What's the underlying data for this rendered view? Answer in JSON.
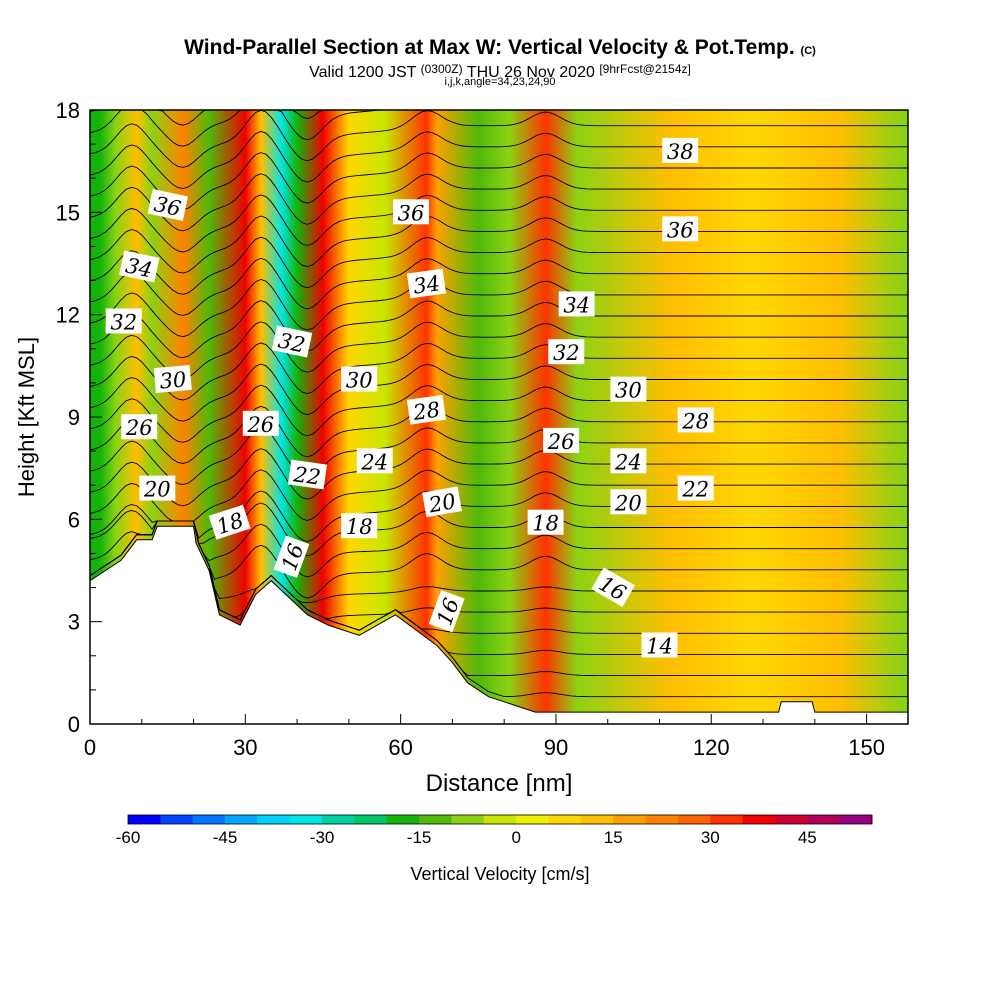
{
  "title": {
    "line1": "Wind-Parallel Section at Max W: Vertical Velocity & Pot.Temp.",
    "copyright": "(C)",
    "line2_pre": "Valid 1200 JST",
    "line2_utc": "(0300Z)",
    "line2_date": "THU 26 Nov 2020",
    "line2_fcst": "[9hrFcst@2154z]",
    "line3": "i,j,k,angle=34,23,24,90"
  },
  "chart_data": {
    "type": "heatmap",
    "xlabel": "Distance [nm]",
    "ylabel": "Height [Kft MSL]",
    "xlim": [
      0,
      158
    ],
    "ylim": [
      0,
      18
    ],
    "x_ticks": [
      0,
      30,
      60,
      90,
      120,
      150
    ],
    "y_ticks": [
      0,
      3,
      6,
      9,
      12,
      15,
      18
    ],
    "colorbar": {
      "label": "Vertical Velocity [cm/s]",
      "min": -60,
      "max": 55,
      "step": 5,
      "ticks": [
        -60,
        -45,
        -30,
        -15,
        0,
        15,
        30,
        45
      ],
      "colors": [
        "#0000ff",
        "#0044ff",
        "#0077ff",
        "#00a6ff",
        "#00d2ff",
        "#00e6e6",
        "#00d2a0",
        "#00c864",
        "#14b40a",
        "#50b90a",
        "#8cd214",
        "#c8e600",
        "#f0f000",
        "#ffd700",
        "#ffbe00",
        "#ffa000",
        "#ff8200",
        "#ff6400",
        "#ff3200",
        "#f00000",
        "#d20032",
        "#b4005a",
        "#960082"
      ]
    },
    "velocity_bands": [
      {
        "x": 2,
        "value": -20
      },
      {
        "x": 5,
        "value": -10
      },
      {
        "x": 9,
        "value": 10
      },
      {
        "x": 12,
        "value": -10
      },
      {
        "x": 18,
        "value": 20
      },
      {
        "x": 23,
        "value": -15
      },
      {
        "x": 30,
        "value": 35
      },
      {
        "x": 33,
        "value": 10
      },
      {
        "x": 37,
        "value": -35
      },
      {
        "x": 40,
        "value": -20
      },
      {
        "x": 45,
        "value": 35
      },
      {
        "x": 50,
        "value": 5
      },
      {
        "x": 57,
        "value": -5
      },
      {
        "x": 65,
        "value": 30
      },
      {
        "x": 67,
        "value": 15
      },
      {
        "x": 75,
        "value": -12
      },
      {
        "x": 81,
        "value": -8
      },
      {
        "x": 88,
        "value": 30
      },
      {
        "x": 94,
        "value": -10
      },
      {
        "x": 112,
        "value": 12
      },
      {
        "x": 128,
        "value": 7
      },
      {
        "x": 145,
        "value": 10
      },
      {
        "x": 157,
        "value": -8
      }
    ],
    "terrain_kft": [
      {
        "x": 0,
        "y": 4.2
      },
      {
        "x": 3,
        "y": 4.5
      },
      {
        "x": 6,
        "y": 4.8
      },
      {
        "x": 9,
        "y": 5.4
      },
      {
        "x": 12,
        "y": 5.4
      },
      {
        "x": 13,
        "y": 5.8
      },
      {
        "x": 20,
        "y": 5.8
      },
      {
        "x": 20.5,
        "y": 5.3
      },
      {
        "x": 23,
        "y": 4.5
      },
      {
        "x": 25,
        "y": 3.2
      },
      {
        "x": 29,
        "y": 2.9
      },
      {
        "x": 32,
        "y": 3.8
      },
      {
        "x": 35,
        "y": 4.2
      },
      {
        "x": 42,
        "y": 3.2
      },
      {
        "x": 46,
        "y": 2.9
      },
      {
        "x": 52,
        "y": 2.6
      },
      {
        "x": 59,
        "y": 3.2
      },
      {
        "x": 67,
        "y": 2.3
      },
      {
        "x": 70,
        "y": 1.8
      },
      {
        "x": 73,
        "y": 1.2
      },
      {
        "x": 77,
        "y": 0.8
      },
      {
        "x": 81,
        "y": 0.6
      },
      {
        "x": 86,
        "y": 0.35
      },
      {
        "x": 91,
        "y": 0.35
      },
      {
        "x": 133,
        "y": 0.35
      },
      {
        "x": 133.5,
        "y": 0.65
      },
      {
        "x": 139.5,
        "y": 0.65
      },
      {
        "x": 140,
        "y": 0.35
      },
      {
        "x": 158,
        "y": 0.35
      }
    ],
    "theta_labels": [
      {
        "text": "38",
        "x": 114,
        "y": 16.8,
        "angle": 0
      },
      {
        "text": "36",
        "x": 15,
        "y": 15.2,
        "angle": 12
      },
      {
        "text": "36",
        "x": 62,
        "y": 15.0,
        "angle": 0
      },
      {
        "text": "36",
        "x": 114,
        "y": 14.5,
        "angle": 0
      },
      {
        "text": "34",
        "x": 9.5,
        "y": 13.4,
        "angle": 12
      },
      {
        "text": "34",
        "x": 65,
        "y": 12.9,
        "angle": -8
      },
      {
        "text": "34",
        "x": 94,
        "y": 12.3,
        "angle": 0
      },
      {
        "text": "32",
        "x": 6.5,
        "y": 11.8,
        "angle": 0
      },
      {
        "text": "32",
        "x": 39,
        "y": 11.2,
        "angle": 12
      },
      {
        "text": "32",
        "x": 92,
        "y": 10.9,
        "angle": 0
      },
      {
        "text": "30",
        "x": 16,
        "y": 10.1,
        "angle": -5
      },
      {
        "text": "30",
        "x": 52,
        "y": 10.1,
        "angle": 0
      },
      {
        "text": "30",
        "x": 104,
        "y": 9.8,
        "angle": 0
      },
      {
        "text": "28",
        "x": 65,
        "y": 9.2,
        "angle": -8
      },
      {
        "text": "28",
        "x": 117,
        "y": 8.9,
        "angle": 0
      },
      {
        "text": "26",
        "x": 9.5,
        "y": 8.7,
        "angle": 0
      },
      {
        "text": "26",
        "x": 33,
        "y": 8.8,
        "angle": 0
      },
      {
        "text": "26",
        "x": 91,
        "y": 8.3,
        "angle": 0
      },
      {
        "text": "24",
        "x": 55,
        "y": 7.7,
        "angle": 0
      },
      {
        "text": "24",
        "x": 104,
        "y": 7.7,
        "angle": 0
      },
      {
        "text": "22",
        "x": 42,
        "y": 7.3,
        "angle": 8
      },
      {
        "text": "22",
        "x": 117,
        "y": 6.9,
        "angle": 0
      },
      {
        "text": "20",
        "x": 13,
        "y": 6.9,
        "angle": 0
      },
      {
        "text": "20",
        "x": 68,
        "y": 6.5,
        "angle": -10
      },
      {
        "text": "20",
        "x": 104,
        "y": 6.5,
        "angle": 0
      },
      {
        "text": "18",
        "x": 27,
        "y": 5.9,
        "angle": -18
      },
      {
        "text": "18",
        "x": 52,
        "y": 5.8,
        "angle": 0
      },
      {
        "text": "18",
        "x": 88,
        "y": 5.9,
        "angle": 0
      },
      {
        "text": "16",
        "x": 39,
        "y": 4.9,
        "angle": -70
      },
      {
        "text": "16",
        "x": 69,
        "y": 3.3,
        "angle": -70
      },
      {
        "text": "16",
        "x": 101,
        "y": 4.0,
        "angle": 30
      },
      {
        "text": "14",
        "x": 110,
        "y": 2.3,
        "angle": 0
      }
    ]
  }
}
